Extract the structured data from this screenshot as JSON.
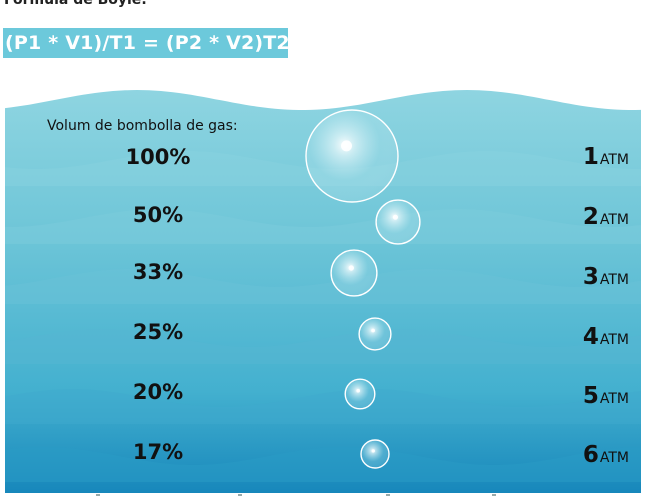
{
  "header": {
    "title": "Formula de Boyle:",
    "formula": "(P1 * V1)/T1 = (P2 * V2)T2"
  },
  "scene": {
    "caption": "Volum de bombolla de gas:",
    "unit": "ATM",
    "colors": {
      "water_light": "#8fd5e1",
      "water_mid": "#6ac4d6",
      "water_deep": "#2a9fc4",
      "water_bottom": "#1787bb",
      "bubble_stroke": "#ffffff"
    },
    "levels": [
      {
        "percent": "100%",
        "pressure": "1",
        "bubble_volume_fraction": 1.0
      },
      {
        "percent": "50%",
        "pressure": "2",
        "bubble_volume_fraction": 0.5
      },
      {
        "percent": "33%",
        "pressure": "3",
        "bubble_volume_fraction": 0.33
      },
      {
        "percent": "25%",
        "pressure": "4",
        "bubble_volume_fraction": 0.25
      },
      {
        "percent": "20%",
        "pressure": "5",
        "bubble_volume_fraction": 0.2
      },
      {
        "percent": "17%",
        "pressure": "6",
        "bubble_volume_fraction": 0.17
      }
    ]
  }
}
